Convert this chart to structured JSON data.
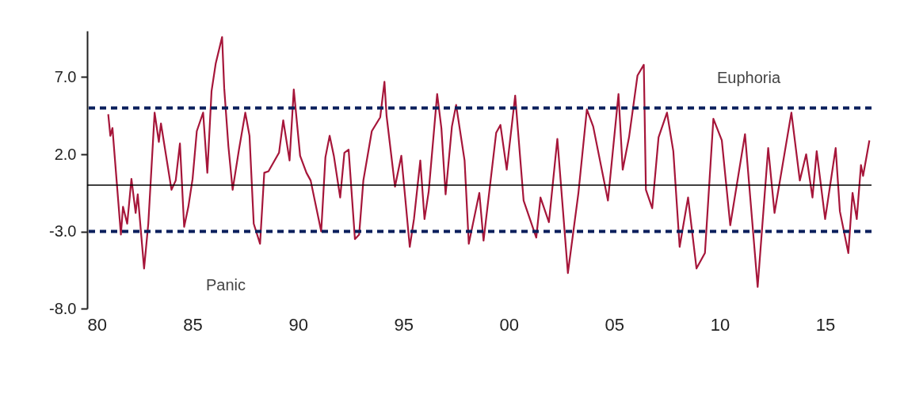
{
  "chart_data": {
    "type": "line",
    "x": [
      1981.0,
      1981.1,
      1981.2,
      1981.6,
      1981.7,
      1981.9,
      1982.1,
      1982.3,
      1982.4,
      1982.7,
      1982.9,
      1983.2,
      1983.4,
      1983.5,
      1984.0,
      1984.2,
      1984.4,
      1984.6,
      1984.8,
      1985.0,
      1985.2,
      1985.5,
      1985.7,
      1985.9,
      1986.1,
      1986.4,
      1986.5,
      1986.7,
      1986.9,
      1987.2,
      1987.5,
      1987.7,
      1987.9,
      1988.2,
      1988.4,
      1988.6,
      1989.1,
      1989.3,
      1989.6,
      1989.8,
      1990.1,
      1990.4,
      1990.6,
      1991.1,
      1991.3,
      1991.5,
      1991.7,
      1992.0,
      1992.2,
      1992.4,
      1992.7,
      1992.9,
      1993.1,
      1993.5,
      1993.9,
      1994.1,
      1994.2,
      1994.6,
      1994.9,
      1995.3,
      1995.5,
      1995.8,
      1996.0,
      1996.2,
      1996.6,
      1996.8,
      1997.0,
      1997.3,
      1997.5,
      1997.9,
      1998.1,
      1998.6,
      1998.8,
      1999.4,
      1999.6,
      1999.9,
      2000.3,
      2000.7,
      2001.0,
      2001.3,
      2001.5,
      2001.9,
      2002.3,
      2002.8,
      2003.3,
      2003.7,
      2004.0,
      2004.7,
      2005.2,
      2005.4,
      2005.7,
      2006.1,
      2006.4,
      2006.5,
      2006.8,
      2007.1,
      2007.5,
      2007.8,
      2008.1,
      2008.5,
      2008.9,
      2009.3,
      2009.7,
      2010.1,
      2010.5,
      2011.2,
      2011.8,
      2012.3,
      2012.6,
      2013.4,
      2013.8,
      2014.1,
      2014.4,
      2014.6,
      2015.0,
      2015.5,
      2015.7,
      2016.1,
      2016.3,
      2016.5,
      2016.7,
      2016.8,
      2017.1
    ],
    "series": [
      {
        "color": "#a6163a",
        "values": [
          4.6,
          3.2,
          3.7,
          -3.2,
          -1.4,
          -2.5,
          0.4,
          -1.8,
          -0.6,
          -5.4,
          -2.5,
          4.7,
          2.8,
          4.0,
          -0.3,
          0.3,
          2.7,
          -2.7,
          -1.4,
          0.4,
          3.5,
          4.7,
          0.8,
          6.1,
          7.9,
          9.6,
          6.3,
          2.5,
          -0.3,
          2.3,
          4.7,
          3.2,
          -2.5,
          -3.8,
          0.8,
          0.9,
          2.1,
          4.2,
          1.6,
          6.2,
          1.9,
          0.8,
          0.3,
          -3.0,
          1.8,
          3.2,
          1.9,
          -0.8,
          2.1,
          2.3,
          -3.5,
          -3.2,
          0.3,
          3.5,
          4.4,
          6.7,
          4.5,
          -0.1,
          1.9,
          -4.0,
          -2.2,
          1.6,
          -2.2,
          -0.4,
          5.9,
          3.7,
          -0.6,
          3.8,
          5.2,
          1.6,
          -3.8,
          -0.5,
          -3.6,
          3.4,
          3.9,
          1.0,
          5.8,
          -1.0,
          -2.2,
          -3.4,
          -0.8,
          -2.4,
          3.0,
          -5.7,
          -0.5,
          4.9,
          3.8,
          -1.0,
          5.9,
          1.0,
          3.1,
          7.1,
          7.8,
          -0.3,
          -1.5,
          3.1,
          4.7,
          2.2,
          -4.0,
          -0.8,
          -5.4,
          -4.4,
          4.3,
          2.9,
          -2.6,
          3.3,
          -6.6,
          2.4,
          -1.8,
          4.7,
          0.3,
          2.0,
          -0.8,
          2.2,
          -2.2,
          2.4,
          -1.7,
          -4.4,
          -0.5,
          -2.2,
          1.3,
          0.6,
          2.9
        ]
      }
    ],
    "xlim": [
      1980,
      2017.2
    ],
    "xticks": [
      {
        "value": 1980,
        "label": "80"
      },
      {
        "value": 1985,
        "label": "85"
      },
      {
        "value": 1990,
        "label": "90"
      },
      {
        "value": 1995,
        "label": "95"
      },
      {
        "value": 2000,
        "label": "00"
      },
      {
        "value": 2005,
        "label": "05"
      },
      {
        "value": 2010,
        "label": "10"
      },
      {
        "value": 2015,
        "label": "15"
      }
    ],
    "ylim": [
      -8,
      10
    ],
    "yticks": [
      {
        "value": -8,
        "label": "-8.0"
      },
      {
        "value": -3,
        "label": "-3.0"
      },
      {
        "value": 2,
        "label": "2.0"
      },
      {
        "value": 7,
        "label": "7.0"
      }
    ],
    "ref_lines": [
      {
        "axis": "y",
        "value": 5,
        "color": "#0a1f5c",
        "line_style": "dashed"
      },
      {
        "axis": "y",
        "value": -3,
        "color": "#0a1f5c",
        "line_style": "dashed"
      },
      {
        "axis": "y",
        "value": 0,
        "color": "#000000",
        "line_style": "solid"
      }
    ],
    "annotations": [
      "Euphoria",
      "Panic"
    ],
    "grid": false,
    "marker": "none",
    "line_style": "solid"
  }
}
